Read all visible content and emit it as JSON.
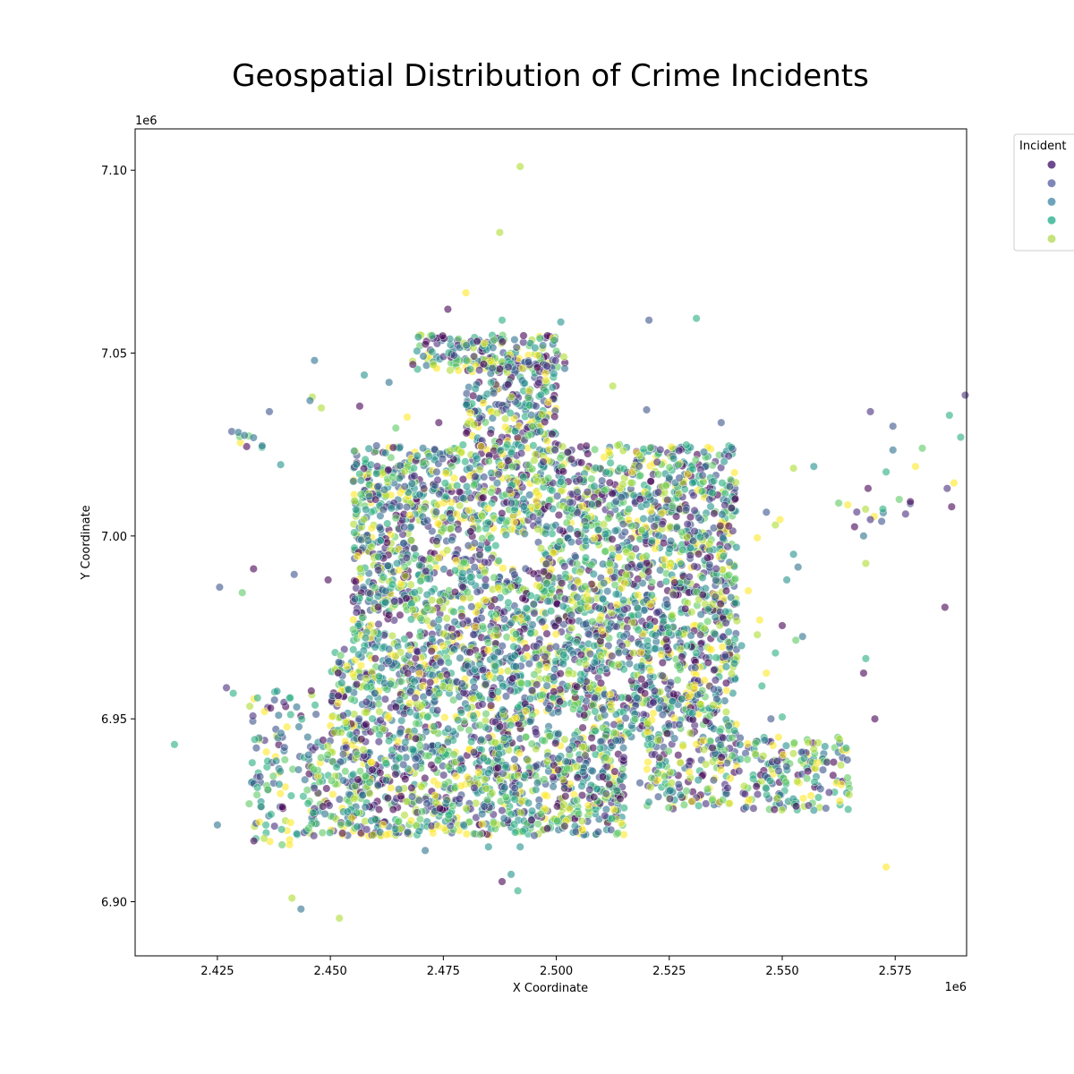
{
  "chart_data": {
    "type": "scatter",
    "title": "Geospatial Distribution of Crime Incidents",
    "xlabel": "X Coordinate",
    "ylabel": "Y Coordinate",
    "x_offset_label": "1e6",
    "y_offset_label": "1e6",
    "xlim": [
      2406800,
      2590800
    ],
    "ylim": [
      6885200,
      7111300
    ],
    "x_ticks": [
      2425000,
      2450000,
      2475000,
      2500000,
      2525000,
      2550000,
      2575000
    ],
    "x_tick_labels": [
      "2.425",
      "2.450",
      "2.475",
      "2.500",
      "2.525",
      "2.550",
      "2.575"
    ],
    "y_ticks": [
      6900000,
      6950000,
      7000000,
      7050000,
      7100000
    ],
    "y_tick_labels": [
      "6.90",
      "6.95",
      "7.00",
      "7.05",
      "7.10"
    ],
    "grid": false,
    "legend": {
      "title": "Incident",
      "placement": "outside-top-right",
      "colors": [
        "#6b4a8f",
        "#7f86b8",
        "#6fa4bd",
        "#56c1a6",
        "#c6e27c"
      ]
    },
    "palette": [
      "#440154",
      "#472d7b",
      "#3b528b",
      "#2c728e",
      "#21918c",
      "#28ae80",
      "#5ec962",
      "#addc30",
      "#fde725"
    ],
    "regions": [
      {
        "x": [
          2468000,
          2502000
        ],
        "y": [
          7045000,
          7055000
        ],
        "density": 1.0
      },
      {
        "x": [
          2480000,
          2500000
        ],
        "y": [
          7025000,
          7048000
        ],
        "density": 1.0
      },
      {
        "x": [
          2455000,
          2540000
        ],
        "y": [
          6995000,
          7025000
        ],
        "density": 1.0
      },
      {
        "x": [
          2455000,
          2540000
        ],
        "y": [
          6970000,
          6995000
        ],
        "density": 1.0
      },
      {
        "x": [
          2450000,
          2540000
        ],
        "y": [
          6945000,
          6970000
        ],
        "density": 1.0
      },
      {
        "x": [
          2445000,
          2515000
        ],
        "y": [
          6918000,
          6945000
        ],
        "density": 1.0
      },
      {
        "x": [
          2520000,
          2540000
        ],
        "y": [
          6925000,
          6945000
        ],
        "density": 0.8
      },
      {
        "x": [
          2540000,
          2565000
        ],
        "y": [
          6925000,
          6945000
        ],
        "density": 0.7
      },
      {
        "x": [
          2432000,
          2447000
        ],
        "y": [
          6915000,
          6958000
        ],
        "density": 0.35
      },
      {
        "x": [
          2428000,
          2435000
        ],
        "y": [
          7023000,
          7030000
        ],
        "density": 0.35
      },
      {
        "x": [
          2566000,
          2580000
        ],
        "y": [
          7005000,
          7010000
        ],
        "density": 0.25
      }
    ],
    "outliers": [
      [
        2492000,
        7101000
      ],
      [
        2487500,
        7083000
      ],
      [
        2480000,
        7066500
      ],
      [
        2476000,
        7062000
      ],
      [
        2488000,
        7059000
      ],
      [
        2520500,
        7059000
      ],
      [
        2531000,
        7059500
      ],
      [
        2512500,
        7041000
      ],
      [
        2446500,
        7048000
      ],
      [
        2457500,
        7044000
      ],
      [
        2463000,
        7042000
      ],
      [
        2446000,
        7038000
      ],
      [
        2436500,
        7034000
      ],
      [
        2448000,
        7035000
      ],
      [
        2456500,
        7035500
      ],
      [
        2445500,
        7037000
      ],
      [
        2464500,
        7029500
      ],
      [
        2474000,
        7031000
      ],
      [
        2520000,
        7034500
      ],
      [
        2536500,
        7031000
      ],
      [
        2527000,
        7019500
      ],
      [
        2552500,
        7018500
      ],
      [
        2557000,
        7019000
      ],
      [
        2569500,
        7034000
      ],
      [
        2574500,
        7030000
      ],
      [
        2587000,
        7033000
      ],
      [
        2590500,
        7038500
      ],
      [
        2589500,
        7027000
      ],
      [
        2579500,
        7019000
      ],
      [
        2581000,
        7024000
      ],
      [
        2574500,
        7023500
      ],
      [
        2573000,
        7017500
      ],
      [
        2569000,
        7013000
      ],
      [
        2586500,
        7013000
      ],
      [
        2588000,
        7014500
      ],
      [
        2587500,
        7008000
      ],
      [
        2562500,
        7009000
      ],
      [
        2564500,
        7008500
      ],
      [
        2566000,
        7002500
      ],
      [
        2569500,
        7004500
      ],
      [
        2568000,
        7000000
      ],
      [
        2572000,
        7004000
      ],
      [
        2549500,
        7004500
      ],
      [
        2546500,
        7006500
      ],
      [
        2544500,
        6999500
      ],
      [
        2548500,
        7003000
      ],
      [
        2552500,
        6995000
      ],
      [
        2553500,
        6991500
      ],
      [
        2551000,
        6988000
      ],
      [
        2542500,
        6985000
      ],
      [
        2545000,
        6977000
      ],
      [
        2548500,
        6968000
      ],
      [
        2538000,
        6971000
      ],
      [
        2541000,
        6970000
      ],
      [
        2544500,
        6973000
      ],
      [
        2554500,
        6972500
      ],
      [
        2550000,
        6975500
      ],
      [
        2553000,
        6971500
      ],
      [
        2568500,
        6966500
      ],
      [
        2568000,
        6962500
      ],
      [
        2546500,
        6962500
      ],
      [
        2545500,
        6959000
      ],
      [
        2547500,
        6950000
      ],
      [
        2550000,
        6950500
      ],
      [
        2570500,
        6950000
      ],
      [
        2573000,
        6909500
      ],
      [
        2557000,
        6925000
      ],
      [
        2586000,
        6980500
      ],
      [
        2568500,
        6992500
      ],
      [
        2525500,
        6932500
      ],
      [
        2518500,
        6932500
      ],
      [
        2449500,
        6988000
      ],
      [
        2442000,
        6989500
      ],
      [
        2425500,
        6986000
      ],
      [
        2430500,
        6984500
      ],
      [
        2433000,
        6991000
      ],
      [
        2415500,
        6943000
      ],
      [
        2425000,
        6921000
      ],
      [
        2428500,
        6957000
      ],
      [
        2427000,
        6958500
      ],
      [
        2441500,
        6901000
      ],
      [
        2443500,
        6898000
      ],
      [
        2452000,
        6895500
      ],
      [
        2488000,
        6905500
      ],
      [
        2490000,
        6907500
      ],
      [
        2491500,
        6903000
      ],
      [
        2485000,
        6915000
      ],
      [
        2492000,
        6915000
      ],
      [
        2498000,
        6920000
      ],
      [
        2479500,
        6921000
      ],
      [
        2471000,
        6914000
      ],
      [
        2439000,
        7019500
      ],
      [
        2467000,
        7032500
      ],
      [
        2501000,
        7058500
      ],
      [
        2499500,
        7053500
      ],
      [
        2431000,
        7027500
      ]
    ]
  }
}
